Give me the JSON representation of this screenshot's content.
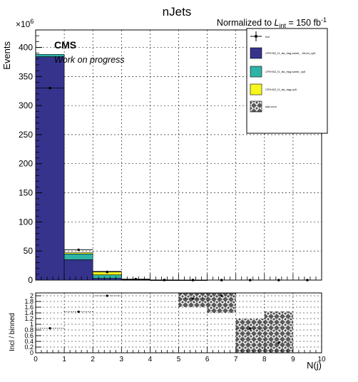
{
  "header": {
    "title": "nJets",
    "normalization_prefix": "Normalized to ",
    "lumi_symbol": "L",
    "lumi_sub": "int",
    "lumi_eq": " = 150 fb",
    "lumi_exp": "-1"
  },
  "cms_label": "CMS",
  "cms_sublabel": "Work on progress",
  "chart_data": [
    {
      "type": "bar",
      "panel": "main",
      "ylabel": "Events",
      "y_multiplier_base": "×10",
      "y_multiplier_exp": "6",
      "xlim": [
        0,
        10
      ],
      "ylim": [
        0,
        430
      ],
      "y_ticks": [
        "0",
        "50",
        "100",
        "150",
        "200",
        "250",
        "300",
        "350",
        "400"
      ],
      "grid": true,
      "bin_edges": [
        0,
        1,
        2,
        3,
        4,
        5,
        6,
        7,
        8,
        9,
        10
      ],
      "series": [
        {
          "name": "CP5+B2_f1_tta_rtag.samtr_ .t/tu/vt_cp5",
          "color": "#35338c",
          "values": [
            384,
            35,
            3,
            0.4,
            0.05,
            0.01,
            0,
            0,
            0,
            0
          ]
        },
        {
          "name": "CP5+B2_f1_tta_rtag.samtr_cp5",
          "color": "#2fb3a6",
          "values": [
            4,
            10,
            6,
            0.5,
            0.08,
            0.01,
            0,
            0,
            0,
            0
          ]
        },
        {
          "name": "CP5+B2_f1_tta_rtag.cp5",
          "color": "#f7f71d",
          "values": [
            0,
            2,
            6,
            0.6,
            0.07,
            0.01,
            0,
            0,
            0,
            0
          ]
        }
      ],
      "stat_error_label": "stat.error",
      "incl_label": "Incl",
      "incl_points": {
        "x": [
          0.5,
          1.5,
          2.5,
          3.5,
          4.5,
          5.5,
          6.5,
          7.5,
          8.5,
          9.5
        ],
        "y": [
          330,
          52,
          14,
          1.6,
          0.2,
          0.03,
          0.005,
          0.001,
          0,
          0
        ]
      }
    },
    {
      "type": "scatter",
      "panel": "ratio",
      "ylabel": "Incl / binned",
      "xlabel": "N(j)",
      "xlim": [
        0,
        10
      ],
      "ylim": [
        0,
        2.1
      ],
      "y_ticks": [
        "0",
        "0.2",
        "0.4",
        "0.6",
        "0.8",
        "1",
        "1.2",
        "1.4",
        "1.6",
        "1.8",
        "2"
      ],
      "x_ticks": [
        "0",
        "1",
        "2",
        "3",
        "4",
        "5",
        "6",
        "7",
        "8",
        "9",
        "10"
      ],
      "points": {
        "x": [
          0.5,
          1.5,
          2.5,
          5.5,
          6.5,
          7.5,
          8.5
        ],
        "y": [
          0.86,
          1.44,
          2.0,
          1.9,
          2.0,
          0.85,
          0.35
        ]
      },
      "error_boxes": [
        {
          "xlo": 5,
          "xhi": 6,
          "ylo": 1.6,
          "yhi": 2.1
        },
        {
          "xlo": 6,
          "xhi": 7,
          "ylo": 1.4,
          "yhi": 2.1
        },
        {
          "xlo": 7,
          "xhi": 8,
          "ylo": 0,
          "yhi": 1.2
        },
        {
          "xlo": 8,
          "xhi": 9,
          "ylo": 0,
          "yhi": 1.45
        }
      ]
    }
  ]
}
